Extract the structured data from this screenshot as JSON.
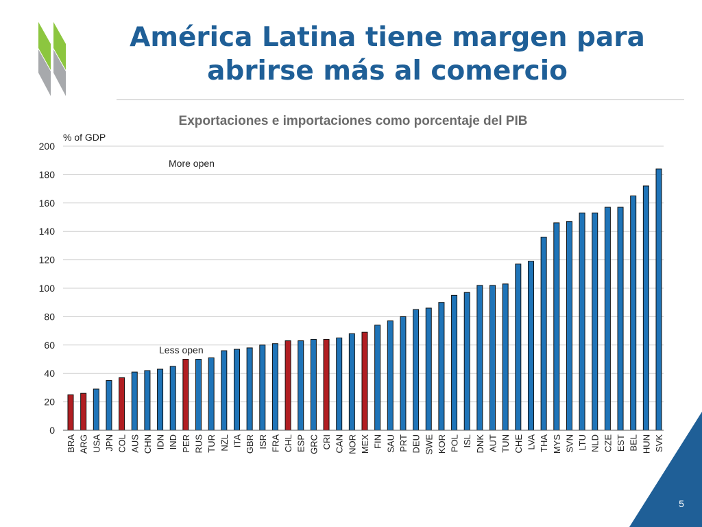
{
  "slide": {
    "title_line1": "América Latina tiene margen para",
    "title_line2": "abrirse más al comercio",
    "subtitle": "Exportaciones e importaciones como porcentaje del PIB",
    "page_number": "5",
    "colors": {
      "title": "#1f5f97",
      "accent_green": "#8cc63f",
      "corner_blue": "#1f5f97"
    }
  },
  "chart_data": {
    "type": "bar",
    "ylabel": "% of GDP",
    "ylim": [
      0,
      200
    ],
    "yticks": [
      0,
      20,
      40,
      60,
      80,
      100,
      120,
      140,
      160,
      180,
      200
    ],
    "grid": true,
    "annotations": [
      "More open",
      "Less open"
    ],
    "series": [
      {
        "categories": [
          "BRA",
          "ARG",
          "USA",
          "JPN",
          "COL",
          "AUS",
          "CHN",
          "IDN",
          "IND",
          "PER",
          "RUS",
          "TUR",
          "NZL",
          "ITA",
          "GBR",
          "ISR",
          "FRA",
          "CHL",
          "ESP",
          "GRC",
          "CRI",
          "CAN",
          "NOR",
          "MEX",
          "FIN",
          "SAU",
          "PRT",
          "DEU",
          "SWE",
          "KOR",
          "POL",
          "ISL",
          "DNK",
          "AUT",
          "TUN",
          "CHE",
          "LVA",
          "THA",
          "MYS",
          "SVN",
          "LTU",
          "NLD",
          "CZE",
          "EST",
          "BEL",
          "HUN",
          "SVK"
        ],
        "values": [
          25,
          26,
          29,
          35,
          37,
          41,
          42,
          43,
          45,
          50,
          50,
          51,
          56,
          57,
          58,
          60,
          61,
          63,
          63,
          64,
          64,
          65,
          68,
          69,
          74,
          77,
          80,
          85,
          86,
          90,
          95,
          97,
          102,
          102,
          103,
          117,
          119,
          136,
          146,
          147,
          153,
          153,
          157,
          157,
          165,
          172,
          184
        ],
        "highlight": [
          "BRA",
          "ARG",
          "COL",
          "PER",
          "CHL",
          "CRI",
          "MEX"
        ]
      }
    ],
    "colors": {
      "bar": "#1f74b8",
      "bar_highlight": "#b11e22",
      "edge": "#111111",
      "grid": "#cfcfcf"
    }
  }
}
